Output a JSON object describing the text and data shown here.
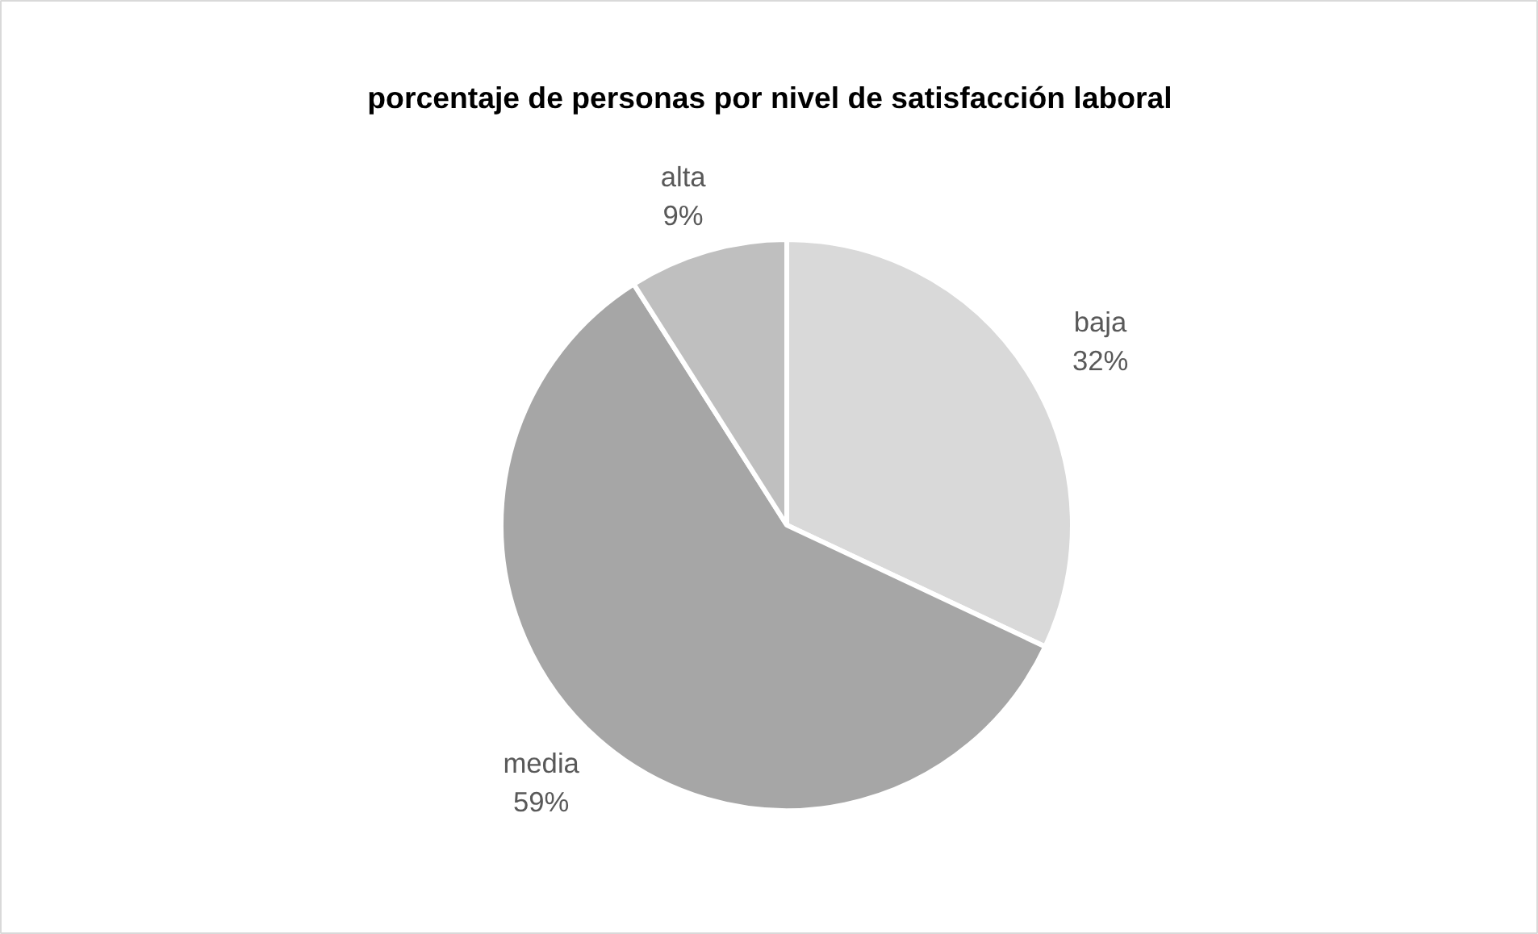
{
  "chart_data": {
    "type": "pie",
    "title": "porcentaje de personas por nivel de satisfacción laboral",
    "categories": [
      "baja",
      "media",
      "alta"
    ],
    "values": [
      32,
      59,
      9
    ],
    "value_labels": [
      "32%",
      "59%",
      "9%"
    ],
    "colors": [
      "#d9d9d9",
      "#a6a6a6",
      "#bfbfbf"
    ],
    "legend": false
  }
}
